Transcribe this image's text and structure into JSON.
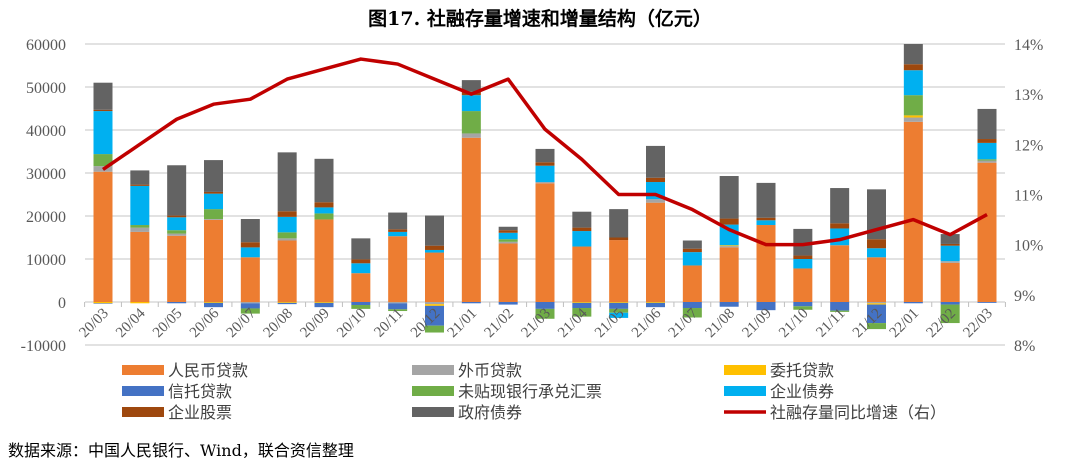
{
  "title": "图17. 社融存量增速和增量结构（亿元）",
  "source": "数据来源：中国人民银行、Wind，联合资信整理",
  "chart_data": {
    "type": "bar",
    "stacked": true,
    "title": "图17. 社融存量增速和增量结构（亿元）",
    "categories": [
      "20/03",
      "20/04",
      "20/05",
      "20/06",
      "20/07",
      "20/08",
      "20/09",
      "20/10",
      "20/11",
      "20/12",
      "21/01",
      "21/02",
      "21/03",
      "21/04",
      "21/05",
      "21/06",
      "21/07",
      "21/08",
      "21/09",
      "21/10",
      "21/11",
      "21/12",
      "22/01",
      "22/02",
      "22/03"
    ],
    "ylim": [
      -10000,
      60000
    ],
    "yticks": [
      "60000",
      "50000",
      "40000",
      "30000",
      "20000",
      "10000",
      "0",
      "-10000"
    ],
    "y2lim": [
      8,
      14
    ],
    "y2ticks": [
      "14%",
      "13%",
      "12%",
      "11%",
      "10%",
      "9%",
      "8%"
    ],
    "grid": true,
    "legend_position": "bottom",
    "series": [
      {
        "name": "人民币贷款",
        "color": "#ED7D31",
        "values": [
          30300,
          16300,
          15400,
          19100,
          10400,
          14300,
          19200,
          6700,
          15300,
          11500,
          38200,
          13600,
          27600,
          12900,
          14400,
          23100,
          8500,
          12700,
          17900,
          7800,
          13200,
          10400,
          41900,
          9100,
          32400
        ]
      },
      {
        "name": "外币贷款",
        "color": "#A5A5A5",
        "values": [
          1300,
          1000,
          500,
          200,
          -300,
          500,
          0,
          0,
          -300,
          -500,
          1000,
          400,
          300,
          0,
          0,
          800,
          0,
          300,
          0,
          0,
          0,
          -300,
          1000,
          400,
          500
        ]
      },
      {
        "name": "委托贷款",
        "color": "#FFC000",
        "values": [
          -300,
          -300,
          0,
          -200,
          0,
          -200,
          -200,
          0,
          0,
          -400,
          0,
          0,
          0,
          -200,
          -200,
          -200,
          0,
          200,
          0,
          0,
          0,
          -300,
          500,
          0,
          0
        ]
      },
      {
        "name": "信托贷款",
        "color": "#4472C4",
        "values": [
          -100,
          0,
          -300,
          -1000,
          -1200,
          -300,
          -1000,
          -700,
          -1400,
          -4600,
          -300,
          -600,
          -1600,
          -1200,
          -1400,
          -1000,
          -1400,
          -1100,
          -1900,
          -1000,
          -2000,
          -4300,
          -300,
          -600,
          -200
        ]
      },
      {
        "name": "未贴现银行承兑汇票",
        "color": "#70AD47",
        "values": [
          2800,
          600,
          800,
          2300,
          -1200,
          1400,
          1400,
          -900,
          -400,
          -1600,
          5200,
          600,
          -2300,
          -2000,
          -900,
          0,
          -2200,
          0,
          0,
          -800,
          -300,
          -1400,
          4700,
          -4300,
          300
        ]
      },
      {
        "name": "企业债券",
        "color": "#00B0F0",
        "values": [
          10000,
          9100,
          3000,
          3600,
          2300,
          3600,
          1400,
          2300,
          1000,
          600,
          3700,
          1500,
          3800,
          3600,
          -1200,
          4000,
          3100,
          4800,
          1100,
          2200,
          3900,
          2100,
          5800,
          3600,
          3800
        ]
      },
      {
        "name": "企业股票",
        "color": "#9E480E",
        "values": [
          300,
          300,
          400,
          400,
          1200,
          1300,
          1200,
          900,
          600,
          1000,
          800,
          600,
          800,
          800,
          600,
          1000,
          800,
          1400,
          600,
          800,
          1200,
          2100,
          1400,
          400,
          900
        ]
      },
      {
        "name": "政府债券",
        "color": "#636363",
        "values": [
          6300,
          3300,
          11700,
          7400,
          5400,
          13700,
          10100,
          4900,
          3900,
          7000,
          2700,
          800,
          3100,
          3700,
          6600,
          7400,
          1900,
          9900,
          8100,
          6200,
          8200,
          11600,
          4700,
          2300,
          7000
        ]
      }
    ],
    "line": {
      "name": "社融存量同比增速（右）",
      "color": "#C00000",
      "axis": "right",
      "unit": "%",
      "values": [
        11.5,
        12.0,
        12.5,
        12.8,
        12.9,
        13.3,
        13.5,
        13.7,
        13.6,
        13.3,
        13.0,
        13.3,
        12.3,
        11.7,
        11.0,
        11.0,
        10.7,
        10.3,
        10.0,
        10.0,
        10.1,
        10.3,
        10.5,
        10.2,
        10.6
      ]
    }
  }
}
